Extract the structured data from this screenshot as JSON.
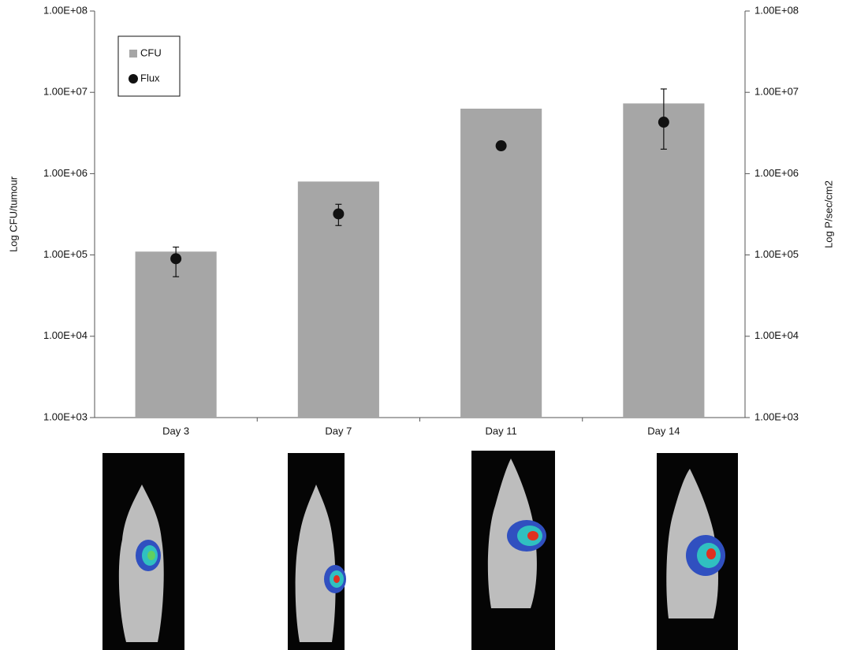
{
  "chart_data": {
    "type": "bar",
    "categories": [
      "Day 3",
      "Day 7",
      "Day 11",
      "Day 14"
    ],
    "ylabel": "Log CFU/tumour",
    "y2label": "Log P/sec/cm2",
    "ylog": true,
    "y2log": true,
    "ylim": [
      1000,
      100000000
    ],
    "yticks": [
      {
        "value": 1000,
        "label": "1.00E+03"
      },
      {
        "value": 10000,
        "label": "1.00E+04"
      },
      {
        "value": 100000,
        "label": "1.00E+05"
      },
      {
        "value": 1000000,
        "label": "1.00E+06"
      },
      {
        "value": 10000000,
        "label": "1.00E+07"
      },
      {
        "value": 100000000,
        "label": "1.00E+08"
      }
    ],
    "y2lim": [
      1000,
      100000000
    ],
    "y2ticks": [
      {
        "value": 1000,
        "label": "1.00E+03"
      },
      {
        "value": 10000,
        "label": "1.00E+04"
      },
      {
        "value": 100000,
        "label": "1.00E+05"
      },
      {
        "value": 1000000,
        "label": "1.00E+06"
      },
      {
        "value": 10000000,
        "label": "1.00E+07"
      },
      {
        "value": 100000000,
        "label": "1.00E+08"
      }
    ],
    "legend": "top-left",
    "series": [
      {
        "name": "CFU",
        "type": "bar",
        "color": "#a6a6a6",
        "values": [
          110000,
          800000,
          6300000,
          7300000
        ]
      },
      {
        "name": "Flux",
        "type": "scatter",
        "axis": "y2",
        "color": "#111111",
        "values": [
          90000,
          320000,
          2200000,
          4300000
        ],
        "error_minus": [
          36000,
          90000,
          100000,
          2300000
        ],
        "error_plus": [
          35000,
          100000,
          100000,
          6700000
        ]
      }
    ]
  }
}
